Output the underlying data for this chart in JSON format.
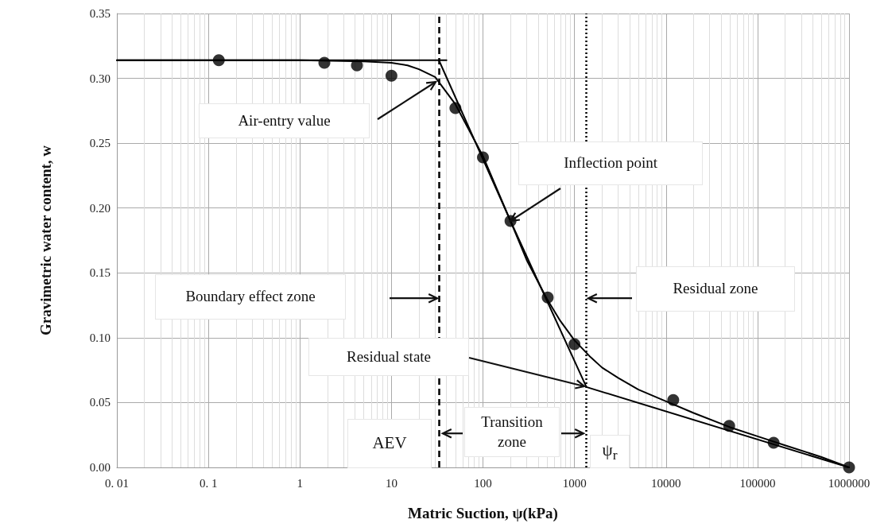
{
  "chart_data": {
    "type": "scatter",
    "xlabel": "Matric Suction, ψ(kPa)",
    "ylabel": "Gravimetric water content, w",
    "log": "x",
    "grid": true,
    "marker": "circle",
    "xlim": [
      0.01,
      1000000
    ],
    "xticks": [
      {
        "value": 0.01,
        "label": "0. 01"
      },
      {
        "value": 0.1,
        "label": "0. 1"
      },
      1,
      10,
      100,
      1000,
      10000,
      100000,
      1000000
    ],
    "ylim": [
      0,
      0.35
    ],
    "yticks": [
      {
        "value": 0,
        "label": "0.00"
      },
      {
        "value": 0.05,
        "label": "0.05"
      },
      {
        "value": 0.1,
        "label": "0.10"
      },
      {
        "value": 0.15,
        "label": "0.15"
      },
      {
        "value": 0.2,
        "label": "0.20"
      },
      {
        "value": 0.25,
        "label": "0.25"
      },
      {
        "value": 0.3,
        "label": "0.30"
      },
      {
        "value": 0.35,
        "label": "0.35"
      }
    ],
    "series": [
      {
        "color": "#000000",
        "x": [
          0.13,
          1.85,
          4.2,
          10,
          50,
          100,
          200,
          510,
          1000,
          12000,
          49000,
          150000,
          1000000
        ],
        "values": [
          0.314,
          0.312,
          0.31,
          0.302,
          0.277,
          0.239,
          0.19,
          0.131,
          0.095,
          0.052,
          0.032,
          0.019,
          0
        ]
      },
      {
        "type": "line",
        "marker": "none",
        "color": "#000000",
        "x": [
          0.01,
          1,
          5,
          10,
          15,
          20,
          30,
          50,
          100,
          200,
          300,
          500,
          700,
          1000,
          1500,
          2000,
          3000,
          5000,
          10000,
          20000,
          50000,
          100000,
          200000,
          500000,
          1000000
        ],
        "values": [
          0.314,
          0.314,
          0.313,
          0.312,
          0.31,
          0.307,
          0.301,
          0.28,
          0.24,
          0.19,
          0.16,
          0.13,
          0.113,
          0.098,
          0.085,
          0.077,
          0.069,
          0.06,
          0.051,
          0.042,
          0.031,
          0.024,
          0.017,
          0.008,
          0
        ]
      },
      {
        "type": "line",
        "marker": "none",
        "color": "#000000",
        "x": [
          0.01,
          40
        ],
        "values": [
          0.314,
          0.314
        ]
      },
      {
        "type": "line",
        "marker": "none",
        "color": "#000000",
        "x": [
          33,
          200,
          1350
        ],
        "values": [
          0.314,
          0.19,
          0.062
        ]
      },
      {
        "type": "line",
        "marker": "none",
        "color": "#000000",
        "x": [
          1350,
          1000000
        ],
        "values": [
          0.062,
          0
        ]
      }
    ],
    "ref_lines": [
      {
        "axis": "x",
        "value": 33,
        "label": "AEV",
        "color": "#000000",
        "line_style": "dashed"
      },
      {
        "axis": "x",
        "value": 1350,
        "label": "ψ$_{r}$",
        "color": "#000000",
        "line_style": "dotted"
      }
    ],
    "annotations": [
      "Air-entry value",
      {
        "text": "Inflection point",
        "x": 200,
        "y": 0.19
      },
      "Boundary effect zone",
      "Residual zone",
      "Residual state",
      "Transition\nzone"
    ]
  }
}
